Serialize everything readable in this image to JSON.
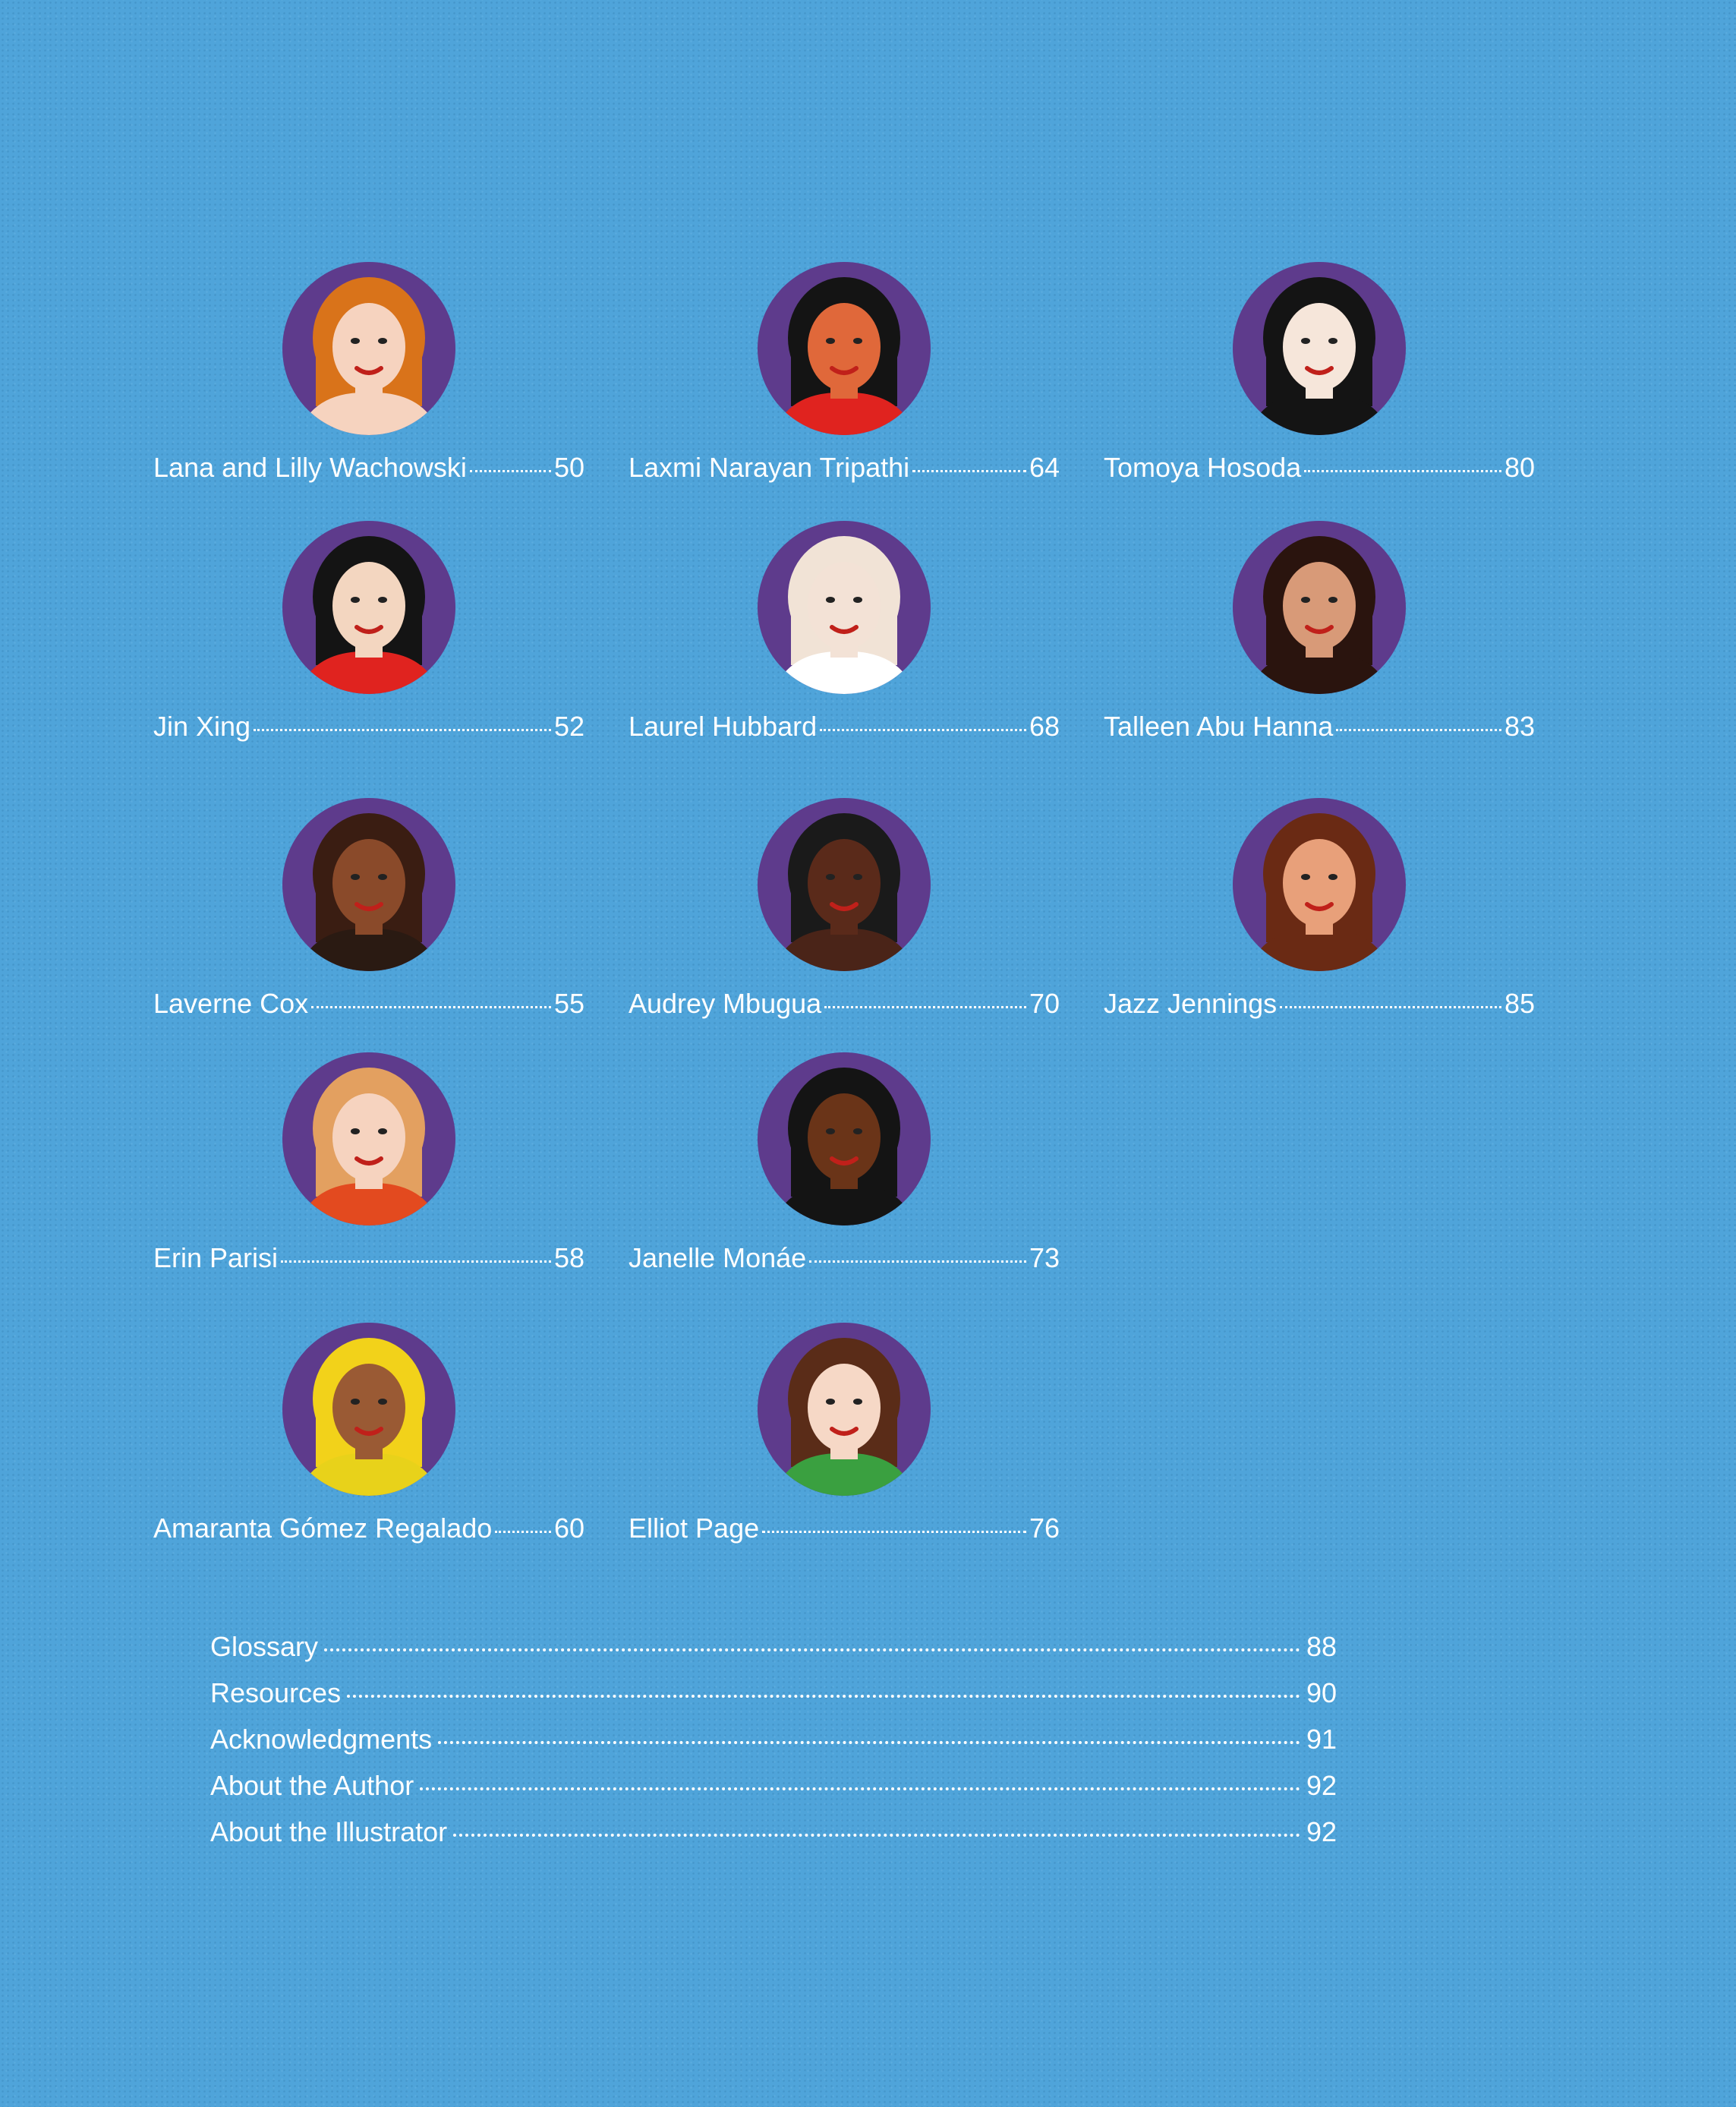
{
  "colors": {
    "background": "#4fa4da",
    "portrait_bg": "#5e3b8c",
    "text": "#ffffff"
  },
  "entries": [
    {
      "name": "Lana and Lilly Wachowski",
      "page": "50",
      "hair": "#d9731a",
      "skin": "#f6d3bf",
      "top": "#f6d3bf"
    },
    {
      "name": "Jin Xing",
      "page": "52",
      "hair": "#141414",
      "skin": "#f3d6c0",
      "top": "#e0231f"
    },
    {
      "name": "Laverne Cox",
      "page": "55",
      "hair": "#3a1d12",
      "skin": "#8a4a2a",
      "top": "#2a1a12"
    },
    {
      "name": "Erin Parisi",
      "page": "58",
      "hair": "#e3a060",
      "skin": "#f6d3bf",
      "top": "#e34a1f"
    },
    {
      "name": "Amaranta Gómez Regalado",
      "page": "60",
      "hair": "#f2d21a",
      "skin": "#9a5a34",
      "top": "#e8d21a"
    },
    {
      "name": "Laxmi Narayan Tripathi",
      "page": "64",
      "hair": "#141414",
      "skin": "#e0683a",
      "top": "#e0231f"
    },
    {
      "name": "Laurel Hubbard",
      "page": "68",
      "hair": "#f1e3d6",
      "skin": "#f3e2d6",
      "top": "#ffffff"
    },
    {
      "name": "Audrey Mbugua",
      "page": "70",
      "hair": "#1a1a1a",
      "skin": "#5a2a1a",
      "top": "#4a2418"
    },
    {
      "name": "Janelle Monáe",
      "page": "73",
      "hair": "#141414",
      "skin": "#6a3418",
      "top": "#141414"
    },
    {
      "name": "Elliot Page",
      "page": "76",
      "hair": "#5a2c18",
      "skin": "#f6d8c6",
      "top": "#3aa040"
    },
    {
      "name": "Tomoya Hosoda",
      "page": "80",
      "hair": "#141414",
      "skin": "#f6e6da",
      "top": "#141414"
    },
    {
      "name": "Talleen Abu Hanna",
      "page": "83",
      "hair": "#2a140e",
      "skin": "#d89a78",
      "top": "#2a140e"
    },
    {
      "name": "Jazz Jennings",
      "page": "85",
      "hair": "#6a2a14",
      "skin": "#e8a07a",
      "top": "#6a2a14"
    }
  ],
  "back_matter": [
    {
      "label": "Glossary",
      "page": "88"
    },
    {
      "label": "Resources",
      "page": "90"
    },
    {
      "label": "Acknowledgments",
      "page": "91"
    },
    {
      "label": "About the Author",
      "page": "92"
    },
    {
      "label": "About the Illustrator",
      "page": "92"
    }
  ]
}
